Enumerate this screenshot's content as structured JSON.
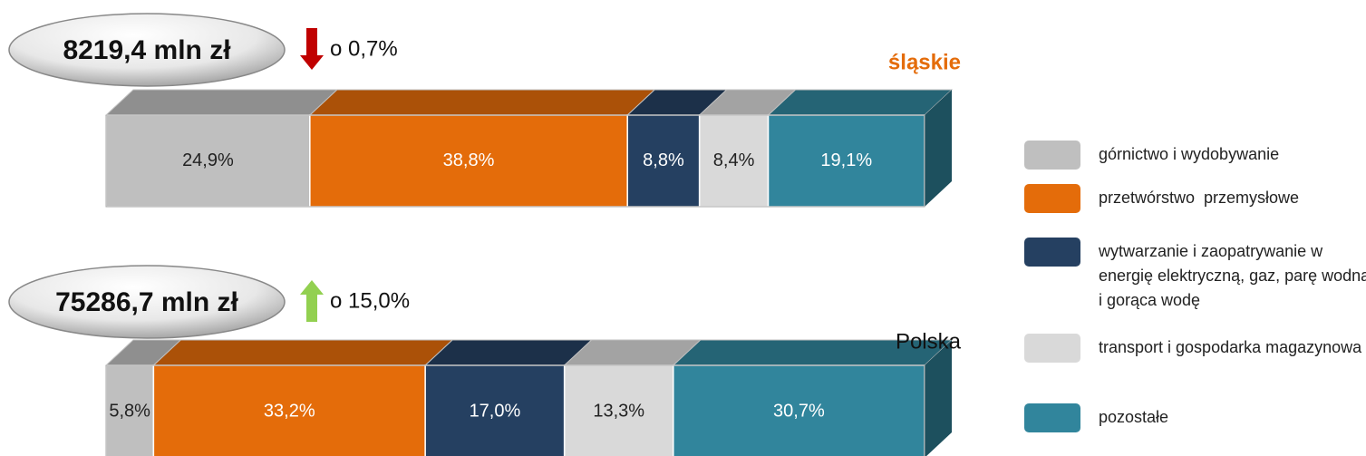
{
  "chart_data": {
    "type": "stacked-bar-3d",
    "categories": [
      "śląskie",
      "Polska"
    ],
    "series": [
      {
        "name": "górnictwo i wydobywanie",
        "color": "#bfbfbf",
        "values": [
          24.9,
          5.8
        ],
        "value_labels": [
          "24,9%",
          "5,8%"
        ]
      },
      {
        "name": "przetwórstwo  przemysłowe",
        "color": "#e46c0a",
        "values": [
          38.8,
          33.2
        ],
        "value_labels": [
          "38,8%",
          "33,2%"
        ]
      },
      {
        "name": "wytwarzanie i zaopatrywanie w energię elektryczną, gaz, parę wodną i gorąca wodę",
        "color": "#254061",
        "values": [
          8.8,
          17.0
        ],
        "value_labels": [
          "8,8%",
          "17,0%"
        ]
      },
      {
        "name": "transport i gospodarka magazynowa",
        "color": "#d9d9d9",
        "values": [
          8.4,
          13.3
        ],
        "value_labels": [
          "8,4%",
          "13,3%"
        ]
      },
      {
        "name": "pozostałe",
        "color": "#31859c",
        "values": [
          19.1,
          30.7
        ],
        "value_labels": [
          "19,1%",
          "30,7%"
        ]
      }
    ],
    "annotations": [
      {
        "total": "8219,4 mln zł",
        "change": "o 0,7%",
        "direction": "down"
      },
      {
        "total": "75286,7 mln zł",
        "change": "o 15,0%",
        "direction": "up"
      }
    ],
    "xlim": [
      0,
      100
    ]
  }
}
